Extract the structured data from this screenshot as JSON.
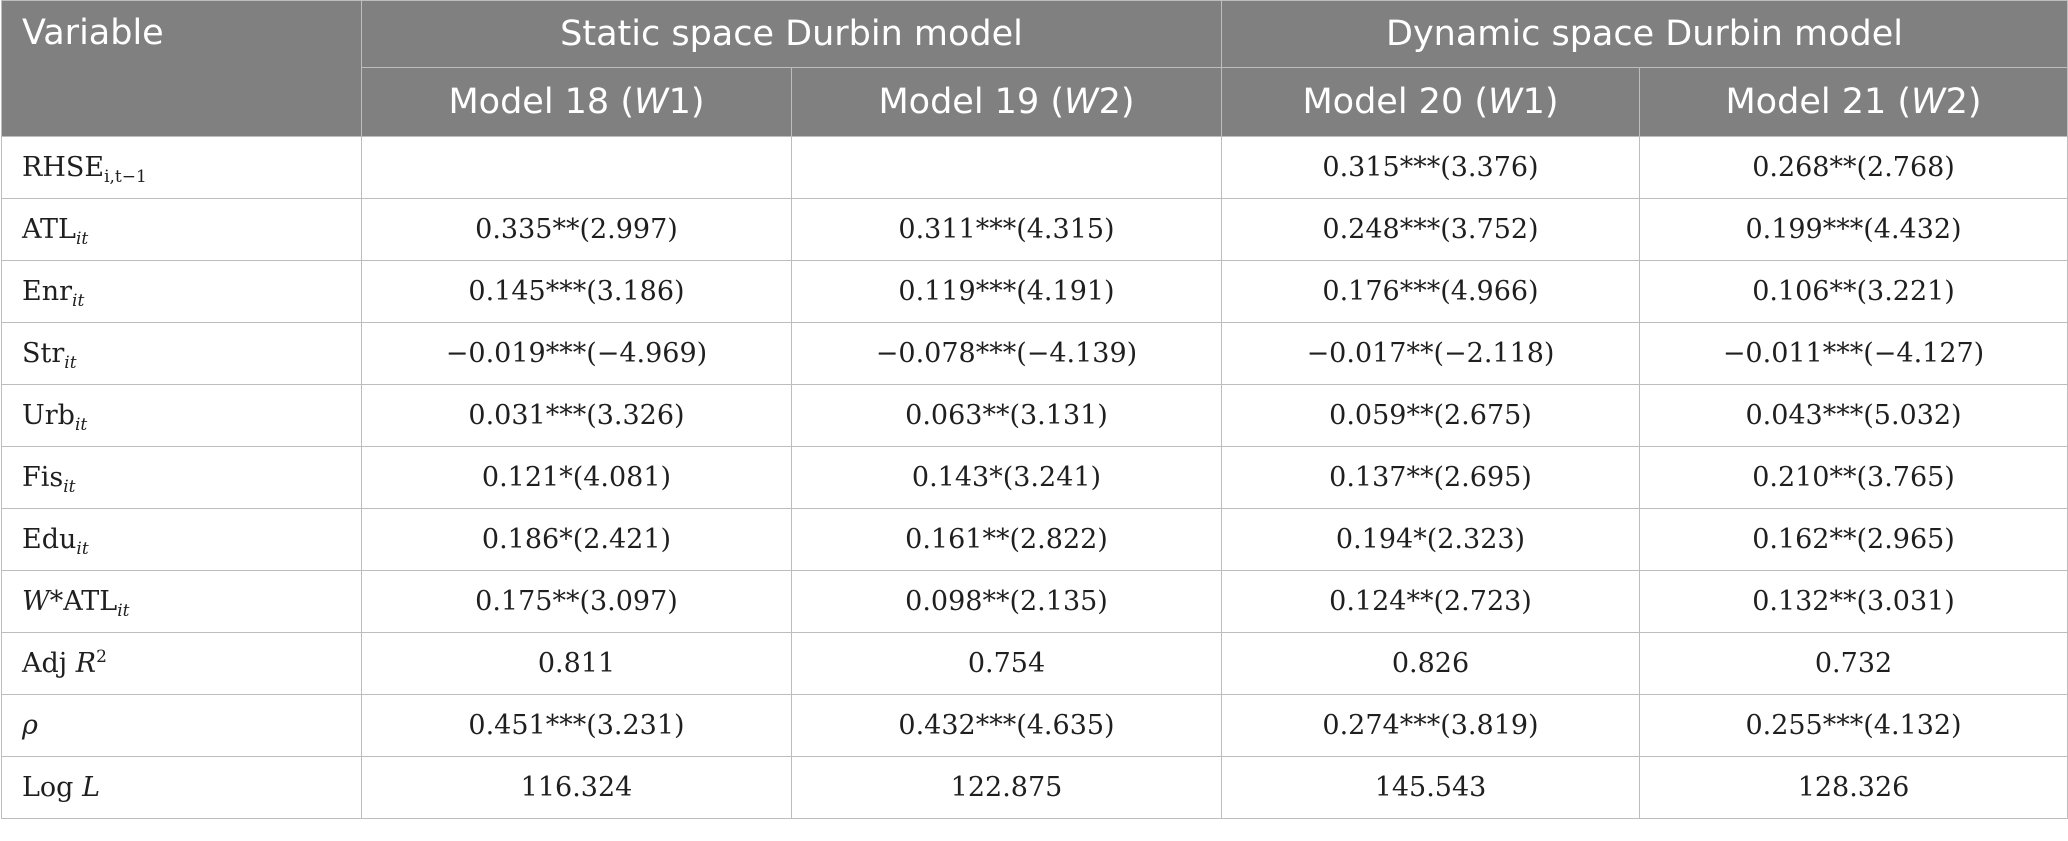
{
  "header": {
    "variable": "Variable",
    "group_static": "Static space Durbin model",
    "group_dynamic": "Dynamic space Durbin model",
    "models": [
      {
        "label": "Model 18 (",
        "w": "W",
        "suffix": "1)"
      },
      {
        "label": "Model 19 (",
        "w": "W",
        "suffix": "2)"
      },
      {
        "label": "Model 20 (",
        "w": "W",
        "suffix": "1)"
      },
      {
        "label": "Model 21 (",
        "w": "W",
        "suffix": "2)"
      }
    ]
  },
  "rows": [
    {
      "var": {
        "pre": "",
        "base": "RHSE",
        "sub": "i,t−1",
        "post": ""
      },
      "values": [
        "",
        "",
        "0.315***(3.376)",
        "0.268**(2.768)"
      ]
    },
    {
      "var": {
        "pre": "",
        "base": "ATL",
        "sub": "it",
        "post": ""
      },
      "values": [
        "0.335**(2.997)",
        "0.311***(4.315)",
        "0.248***(3.752)",
        "0.199***(4.432)"
      ]
    },
    {
      "var": {
        "pre": "",
        "base": "Enr",
        "sub": "it",
        "post": ""
      },
      "values": [
        "0.145***(3.186)",
        "0.119***(4.191)",
        "0.176***(4.966)",
        "0.106**(3.221)"
      ]
    },
    {
      "var": {
        "pre": "",
        "base": "Str",
        "sub": "it",
        "post": ""
      },
      "values": [
        "−0.019***(−4.969)",
        "−0.078***(−4.139)",
        "−0.017**(−2.118)",
        "−0.011***(−4.127)"
      ]
    },
    {
      "var": {
        "pre": "",
        "base": "Urb",
        "sub": "it",
        "post": ""
      },
      "values": [
        "0.031***(3.326)",
        "0.063**(3.131)",
        "0.059**(2.675)",
        "0.043***(5.032)"
      ]
    },
    {
      "var": {
        "pre": "",
        "base": "Fis",
        "sub": "it",
        "post": ""
      },
      "values": [
        "0.121*(4.081)",
        "0.143*(3.241)",
        "0.137**(2.695)",
        "0.210**(3.765)"
      ]
    },
    {
      "var": {
        "pre": "",
        "base": "Edu",
        "sub": "it",
        "post": ""
      },
      "values": [
        "0.186*(2.421)",
        "0.161**(2.822)",
        "0.194*(2.323)",
        "0.162**(2.965)"
      ]
    },
    {
      "var": {
        "pre": "W",
        "base": "*ATL",
        "sub": "it",
        "post": ""
      },
      "values": [
        "0.175**(3.097)",
        "0.098**(2.135)",
        "0.124**(2.723)",
        "0.132**(3.031)"
      ]
    },
    {
      "var": {
        "pre": "",
        "base": "Adj ",
        "it": "R",
        "sup": "2"
      },
      "values": [
        "0.811",
        "0.754",
        "0.826",
        "0.732"
      ]
    },
    {
      "var": {
        "pre": "",
        "base": "",
        "it": "ρ",
        "sup": ""
      },
      "values": [
        "0.451***(3.231)",
        "0.432***(4.635)",
        "0.274***(3.819)",
        "0.255***(4.132)"
      ]
    },
    {
      "var": {
        "pre": "",
        "base": "Log ",
        "it": "L",
        "sup": ""
      },
      "values": [
        "116.324",
        "122.875",
        "145.543",
        "128.326"
      ]
    }
  ]
}
